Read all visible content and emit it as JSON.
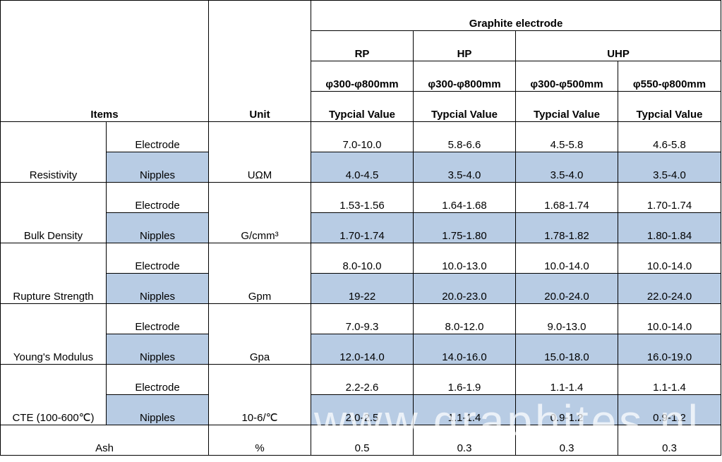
{
  "table": {
    "group_header": "Graphite electrode",
    "items_header": "Items",
    "unit_header": "Unit",
    "grades": {
      "rp": "RP",
      "hp": "HP",
      "uhp": "UHP"
    },
    "diameters": [
      "φ300-φ800mm",
      "φ300-φ800mm",
      "φ300-φ500mm",
      "φ550-φ800mm"
    ],
    "value_label": "Typcial Value",
    "rows": [
      {
        "item": "Resistivity",
        "unit": "UΩM",
        "electrode": {
          "label": "Electrode",
          "values": [
            "7.0-10.0",
            "5.8-6.6",
            "4.5-5.8",
            "4.6-5.8"
          ]
        },
        "nipples": {
          "label": "Nipples",
          "values": [
            "4.0-4.5",
            "3.5-4.0",
            "3.5-4.0",
            "3.5-4.0"
          ]
        }
      },
      {
        "item": "Bulk Density",
        "unit": "G/cmm³",
        "electrode": {
          "label": "Electrode",
          "values": [
            "1.53-1.56",
            "1.64-1.68",
            "1.68-1.74",
            "1.70-1.74"
          ]
        },
        "nipples": {
          "label": "Nipples",
          "values": [
            "1.70-1.74",
            "1.75-1.80",
            "1.78-1.82",
            "1.80-1.84"
          ]
        }
      },
      {
        "item": "Rupture Strength",
        "unit": "Gpm",
        "electrode": {
          "label": "Electrode",
          "values": [
            "8.0-10.0",
            "10.0-13.0",
            "10.0-14.0",
            "10.0-14.0"
          ]
        },
        "nipples": {
          "label": "Nipples",
          "values": [
            "19-22",
            "20.0-23.0",
            "20.0-24.0",
            "22.0-24.0"
          ]
        }
      },
      {
        "item": "Young's Modulus",
        "unit": "Gpa",
        "electrode": {
          "label": "Electrode",
          "values": [
            "7.0-9.3",
            "8.0-12.0",
            "9.0-13.0",
            "10.0-14.0"
          ]
        },
        "nipples": {
          "label": "Nipples",
          "values": [
            "12.0-14.0",
            "14.0-16.0",
            "15.0-18.0",
            "16.0-19.0"
          ]
        }
      },
      {
        "item": "CTE (100-600℃)",
        "unit": "10-6/℃",
        "electrode": {
          "label": "Electrode",
          "values": [
            "2.2-2.6",
            "1.6-1.9",
            "1.1-1.4",
            "1.1-1.4"
          ]
        },
        "nipples": {
          "label": "Nipples",
          "values": [
            "2.0-2.5",
            "1.1-1.4",
            "0.9-1.2",
            "0.9-1.2"
          ]
        }
      }
    ],
    "ash": {
      "item": "Ash",
      "unit": "%",
      "values": [
        "0.5",
        "0.3",
        "0.3",
        "0.3"
      ]
    }
  },
  "watermark": "www.graphites.nl",
  "colors": {
    "nipple_shade": "#b8cce4",
    "border": "#000000"
  }
}
